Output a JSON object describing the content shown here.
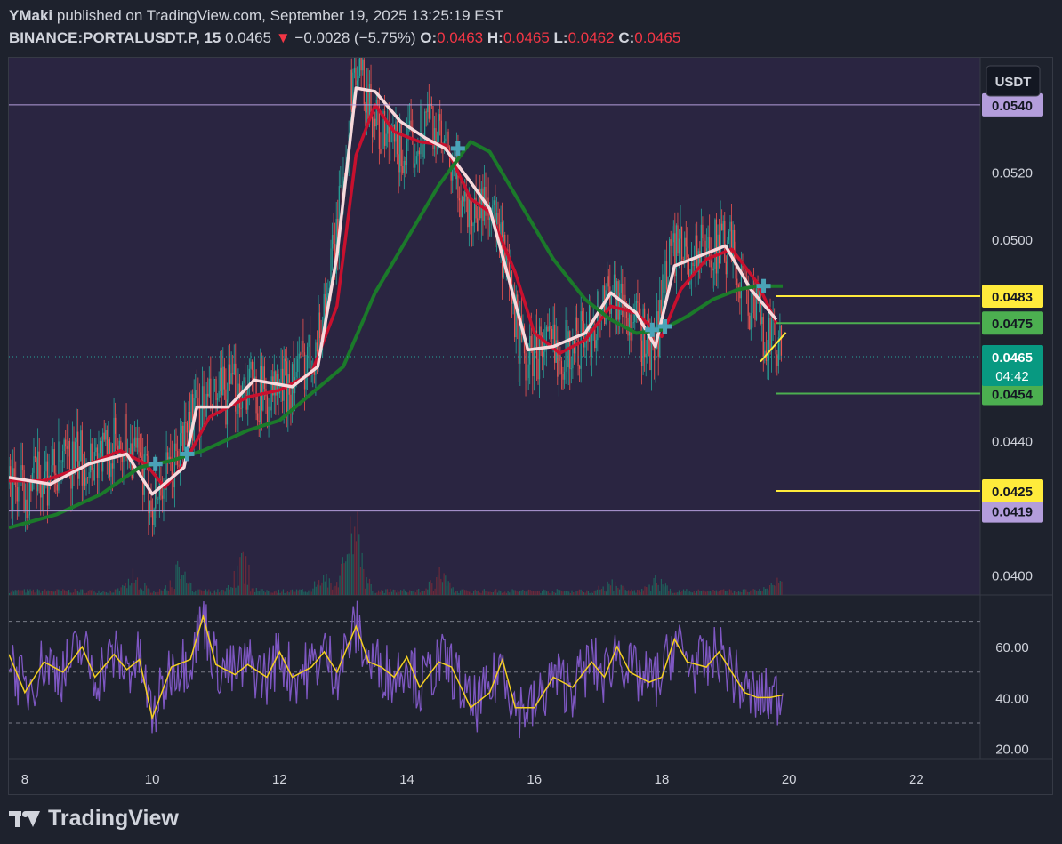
{
  "header": {
    "author": "YMaki",
    "published_text": "published on TradingView.com, September 19, 2025 13:25:19 EST",
    "symbol": "BINANCE:PORTALUSDT.P, 15",
    "last": "0.0465",
    "change_arrow": "▼",
    "change": "−0.0028 (−5.75%)",
    "o_label": "O:",
    "o": "0.0463",
    "h_label": "H:",
    "h": "0.0465",
    "l_label": "L:",
    "l": "0.0462",
    "c_label": "C:",
    "c": "0.0465"
  },
  "footer": {
    "brand": "TradingView"
  },
  "colors": {
    "background": "#1e222d",
    "plot_background": "#2a2541",
    "up": "#26a69a",
    "down": "#ef5350",
    "red_line": "#c8102e",
    "white_line": "#f7d9dc",
    "green_line": "#1b7a2a",
    "yellow": "#ffeb3b",
    "green_level": "#4caf50",
    "lavender": "#b39ddb",
    "osc": "#7e57c2",
    "osc_signal": "#f5d020"
  },
  "chart_data": {
    "type": "candlestick",
    "currency_label": "USDT",
    "x_ticks": [
      "8",
      "10",
      "12",
      "14",
      "16",
      "18",
      "20",
      "22"
    ],
    "x_range": [
      7.75,
      23.0
    ],
    "y_range": [
      0.0394,
      0.0554
    ],
    "y_ticks": [
      "0.0400",
      "0.0440",
      "0.0500",
      "0.0520"
    ],
    "last_price": {
      "value": 0.0465,
      "label": "0.0465",
      "countdown": "04:42"
    },
    "horizontal_lines": [
      {
        "value": 0.054,
        "label": "0.0540",
        "color": "#b39ddb",
        "style": "full"
      },
      {
        "value": 0.0419,
        "label": "0.0419",
        "color": "#b39ddb",
        "style": "full"
      },
      {
        "value": 0.0483,
        "label": "0.0483",
        "color": "#ffeb3b",
        "style": "ray",
        "start": 19.8
      },
      {
        "value": 0.0475,
        "label": "0.0475",
        "color": "#4caf50",
        "style": "ray",
        "start": 19.8
      },
      {
        "value": 0.0454,
        "label": "0.0454",
        "color": "#4caf50",
        "style": "ray",
        "start": 19.8
      },
      {
        "value": 0.0425,
        "label": "0.0425",
        "color": "#ffeb3b",
        "style": "ray",
        "start": 19.8
      }
    ],
    "price_path": [
      [
        7.75,
        0.0427
      ],
      [
        8.0,
        0.0425
      ],
      [
        8.3,
        0.0429
      ],
      [
        8.8,
        0.0434
      ],
      [
        9.2,
        0.0436
      ],
      [
        9.6,
        0.0441
      ],
      [
        9.8,
        0.0432
      ],
      [
        10.0,
        0.0423
      ],
      [
        10.3,
        0.043
      ],
      [
        10.6,
        0.0447
      ],
      [
        11.0,
        0.0452
      ],
      [
        11.5,
        0.0457
      ],
      [
        11.8,
        0.0453
      ],
      [
        12.2,
        0.0458
      ],
      [
        12.6,
        0.047
      ],
      [
        12.9,
        0.05
      ],
      [
        13.15,
        0.055
      ],
      [
        13.3,
        0.0548
      ],
      [
        13.6,
        0.053
      ],
      [
        14.0,
        0.0525
      ],
      [
        14.35,
        0.0537
      ],
      [
        14.7,
        0.052
      ],
      [
        15.0,
        0.0508
      ],
      [
        15.3,
        0.0512
      ],
      [
        15.6,
        0.0485
      ],
      [
        15.85,
        0.0463
      ],
      [
        16.1,
        0.0468
      ],
      [
        16.5,
        0.0467
      ],
      [
        16.9,
        0.0473
      ],
      [
        17.2,
        0.0487
      ],
      [
        17.5,
        0.0476
      ],
      [
        17.9,
        0.0466
      ],
      [
        18.1,
        0.0497
      ],
      [
        18.4,
        0.0494
      ],
      [
        18.8,
        0.0498
      ],
      [
        19.1,
        0.0496
      ],
      [
        19.4,
        0.048
      ],
      [
        19.7,
        0.047
      ],
      [
        19.9,
        0.0465
      ]
    ],
    "series": [
      {
        "name": "",
        "color": "#c8102e",
        "points": [
          [
            7.75,
            0.0428
          ],
          [
            8.3,
            0.0428
          ],
          [
            8.9,
            0.0432
          ],
          [
            9.5,
            0.0437
          ],
          [
            9.9,
            0.0433
          ],
          [
            10.2,
            0.0426
          ],
          [
            10.5,
            0.0433
          ],
          [
            10.9,
            0.0447
          ],
          [
            11.5,
            0.0453
          ],
          [
            12.0,
            0.0455
          ],
          [
            12.5,
            0.046
          ],
          [
            12.9,
            0.048
          ],
          [
            13.2,
            0.0525
          ],
          [
            13.5,
            0.054
          ],
          [
            13.8,
            0.0532
          ],
          [
            14.2,
            0.0529
          ],
          [
            14.6,
            0.0528
          ],
          [
            15.0,
            0.0512
          ],
          [
            15.3,
            0.0508
          ],
          [
            15.7,
            0.049
          ],
          [
            16.0,
            0.0472
          ],
          [
            16.4,
            0.0466
          ],
          [
            16.8,
            0.047
          ],
          [
            17.2,
            0.048
          ],
          [
            17.6,
            0.0478
          ],
          [
            18.0,
            0.0471
          ],
          [
            18.3,
            0.0485
          ],
          [
            18.7,
            0.0494
          ],
          [
            19.1,
            0.0497
          ],
          [
            19.5,
            0.0487
          ],
          [
            19.8,
            0.0475
          ]
        ]
      },
      {
        "name": "",
        "color": "#f7d9dc",
        "points": [
          [
            7.75,
            0.0429
          ],
          [
            8.4,
            0.0427
          ],
          [
            9.0,
            0.0433
          ],
          [
            9.6,
            0.0436
          ],
          [
            10.0,
            0.0424
          ],
          [
            10.5,
            0.0432
          ],
          [
            10.7,
            0.045
          ],
          [
            11.2,
            0.045
          ],
          [
            11.6,
            0.0458
          ],
          [
            12.2,
            0.0456
          ],
          [
            12.6,
            0.0462
          ],
          [
            12.9,
            0.0495
          ],
          [
            13.2,
            0.0545
          ],
          [
            13.5,
            0.0544
          ],
          [
            13.9,
            0.0535
          ],
          [
            14.3,
            0.053
          ],
          [
            14.6,
            0.0527
          ],
          [
            15.0,
            0.0517
          ],
          [
            15.3,
            0.0509
          ],
          [
            15.6,
            0.0488
          ],
          [
            15.9,
            0.0467
          ],
          [
            16.3,
            0.0468
          ],
          [
            16.8,
            0.0472
          ],
          [
            17.2,
            0.0484
          ],
          [
            17.6,
            0.0478
          ],
          [
            17.9,
            0.0468
          ],
          [
            18.2,
            0.0492
          ],
          [
            18.6,
            0.0495
          ],
          [
            19.0,
            0.0498
          ],
          [
            19.4,
            0.0485
          ],
          [
            19.8,
            0.0476
          ]
        ]
      },
      {
        "name": "",
        "color": "#1b7a2a",
        "points": [
          [
            7.75,
            0.0414
          ],
          [
            8.5,
            0.0418
          ],
          [
            9.2,
            0.0424
          ],
          [
            9.8,
            0.0432
          ],
          [
            10.3,
            0.0434
          ],
          [
            10.8,
            0.0437
          ],
          [
            11.5,
            0.0443
          ],
          [
            12.0,
            0.0446
          ],
          [
            12.5,
            0.0454
          ],
          [
            13.0,
            0.0462
          ],
          [
            13.5,
            0.0484
          ],
          [
            14.0,
            0.05
          ],
          [
            14.5,
            0.0516
          ],
          [
            15.0,
            0.0529
          ],
          [
            15.3,
            0.0526
          ],
          [
            15.8,
            0.051
          ],
          [
            16.3,
            0.0494
          ],
          [
            16.8,
            0.0482
          ],
          [
            17.2,
            0.0476
          ],
          [
            17.6,
            0.0472
          ],
          [
            18.0,
            0.0473
          ],
          [
            18.4,
            0.0477
          ],
          [
            18.8,
            0.0482
          ],
          [
            19.2,
            0.0485
          ],
          [
            19.5,
            0.0486
          ],
          [
            19.9,
            0.0486
          ]
        ]
      }
    ],
    "markers": [
      {
        "x": 10.05,
        "y": 0.0433
      },
      {
        "x": 10.55,
        "y": 0.0436
      },
      {
        "x": 14.8,
        "y": 0.0527
      },
      {
        "x": 17.85,
        "y": 0.0473
      },
      {
        "x": 18.05,
        "y": 0.0474
      },
      {
        "x": 19.6,
        "y": 0.0486
      }
    ],
    "volume_spikes": [
      [
        13.1,
        1.0
      ],
      [
        13.2,
        0.9
      ],
      [
        12.7,
        0.45
      ],
      [
        11.4,
        0.7
      ],
      [
        10.4,
        0.55
      ],
      [
        9.7,
        0.35
      ],
      [
        14.5,
        0.4
      ],
      [
        17.2,
        0.25
      ],
      [
        17.9,
        0.3
      ],
      [
        19.8,
        0.25
      ]
    ],
    "oscillator": {
      "y_range": [
        16,
        80
      ],
      "y_ticks": [
        "20.00",
        "40.00",
        "60.00"
      ],
      "bands": [
        30,
        50,
        70
      ],
      "signal_path": [
        [
          7.75,
          57
        ],
        [
          8.0,
          42
        ],
        [
          8.3,
          54
        ],
        [
          8.6,
          50
        ],
        [
          8.9,
          60
        ],
        [
          9.1,
          48
        ],
        [
          9.4,
          57
        ],
        [
          9.6,
          51
        ],
        [
          9.8,
          55
        ],
        [
          10.0,
          32
        ],
        [
          10.3,
          52
        ],
        [
          10.6,
          55
        ],
        [
          10.8,
          72
        ],
        [
          11.0,
          53
        ],
        [
          11.3,
          49
        ],
        [
          11.5,
          53
        ],
        [
          11.8,
          48
        ],
        [
          12.0,
          58
        ],
        [
          12.2,
          48
        ],
        [
          12.5,
          52
        ],
        [
          12.7,
          58
        ],
        [
          12.9,
          50
        ],
        [
          13.2,
          68
        ],
        [
          13.4,
          54
        ],
        [
          13.6,
          52
        ],
        [
          13.8,
          48
        ],
        [
          14.0,
          56
        ],
        [
          14.2,
          44
        ],
        [
          14.5,
          54
        ],
        [
          14.7,
          52
        ],
        [
          15.0,
          36
        ],
        [
          15.3,
          42
        ],
        [
          15.5,
          55
        ],
        [
          15.7,
          36
        ],
        [
          16.0,
          36
        ],
        [
          16.3,
          48
        ],
        [
          16.6,
          44
        ],
        [
          16.9,
          54
        ],
        [
          17.1,
          48
        ],
        [
          17.3,
          60
        ],
        [
          17.5,
          50
        ],
        [
          17.8,
          46
        ],
        [
          18.0,
          48
        ],
        [
          18.2,
          63
        ],
        [
          18.4,
          54
        ],
        [
          18.7,
          52
        ],
        [
          18.9,
          58
        ],
        [
          19.1,
          50
        ],
        [
          19.3,
          42
        ],
        [
          19.5,
          40
        ],
        [
          19.7,
          40
        ],
        [
          19.9,
          41
        ]
      ]
    }
  }
}
